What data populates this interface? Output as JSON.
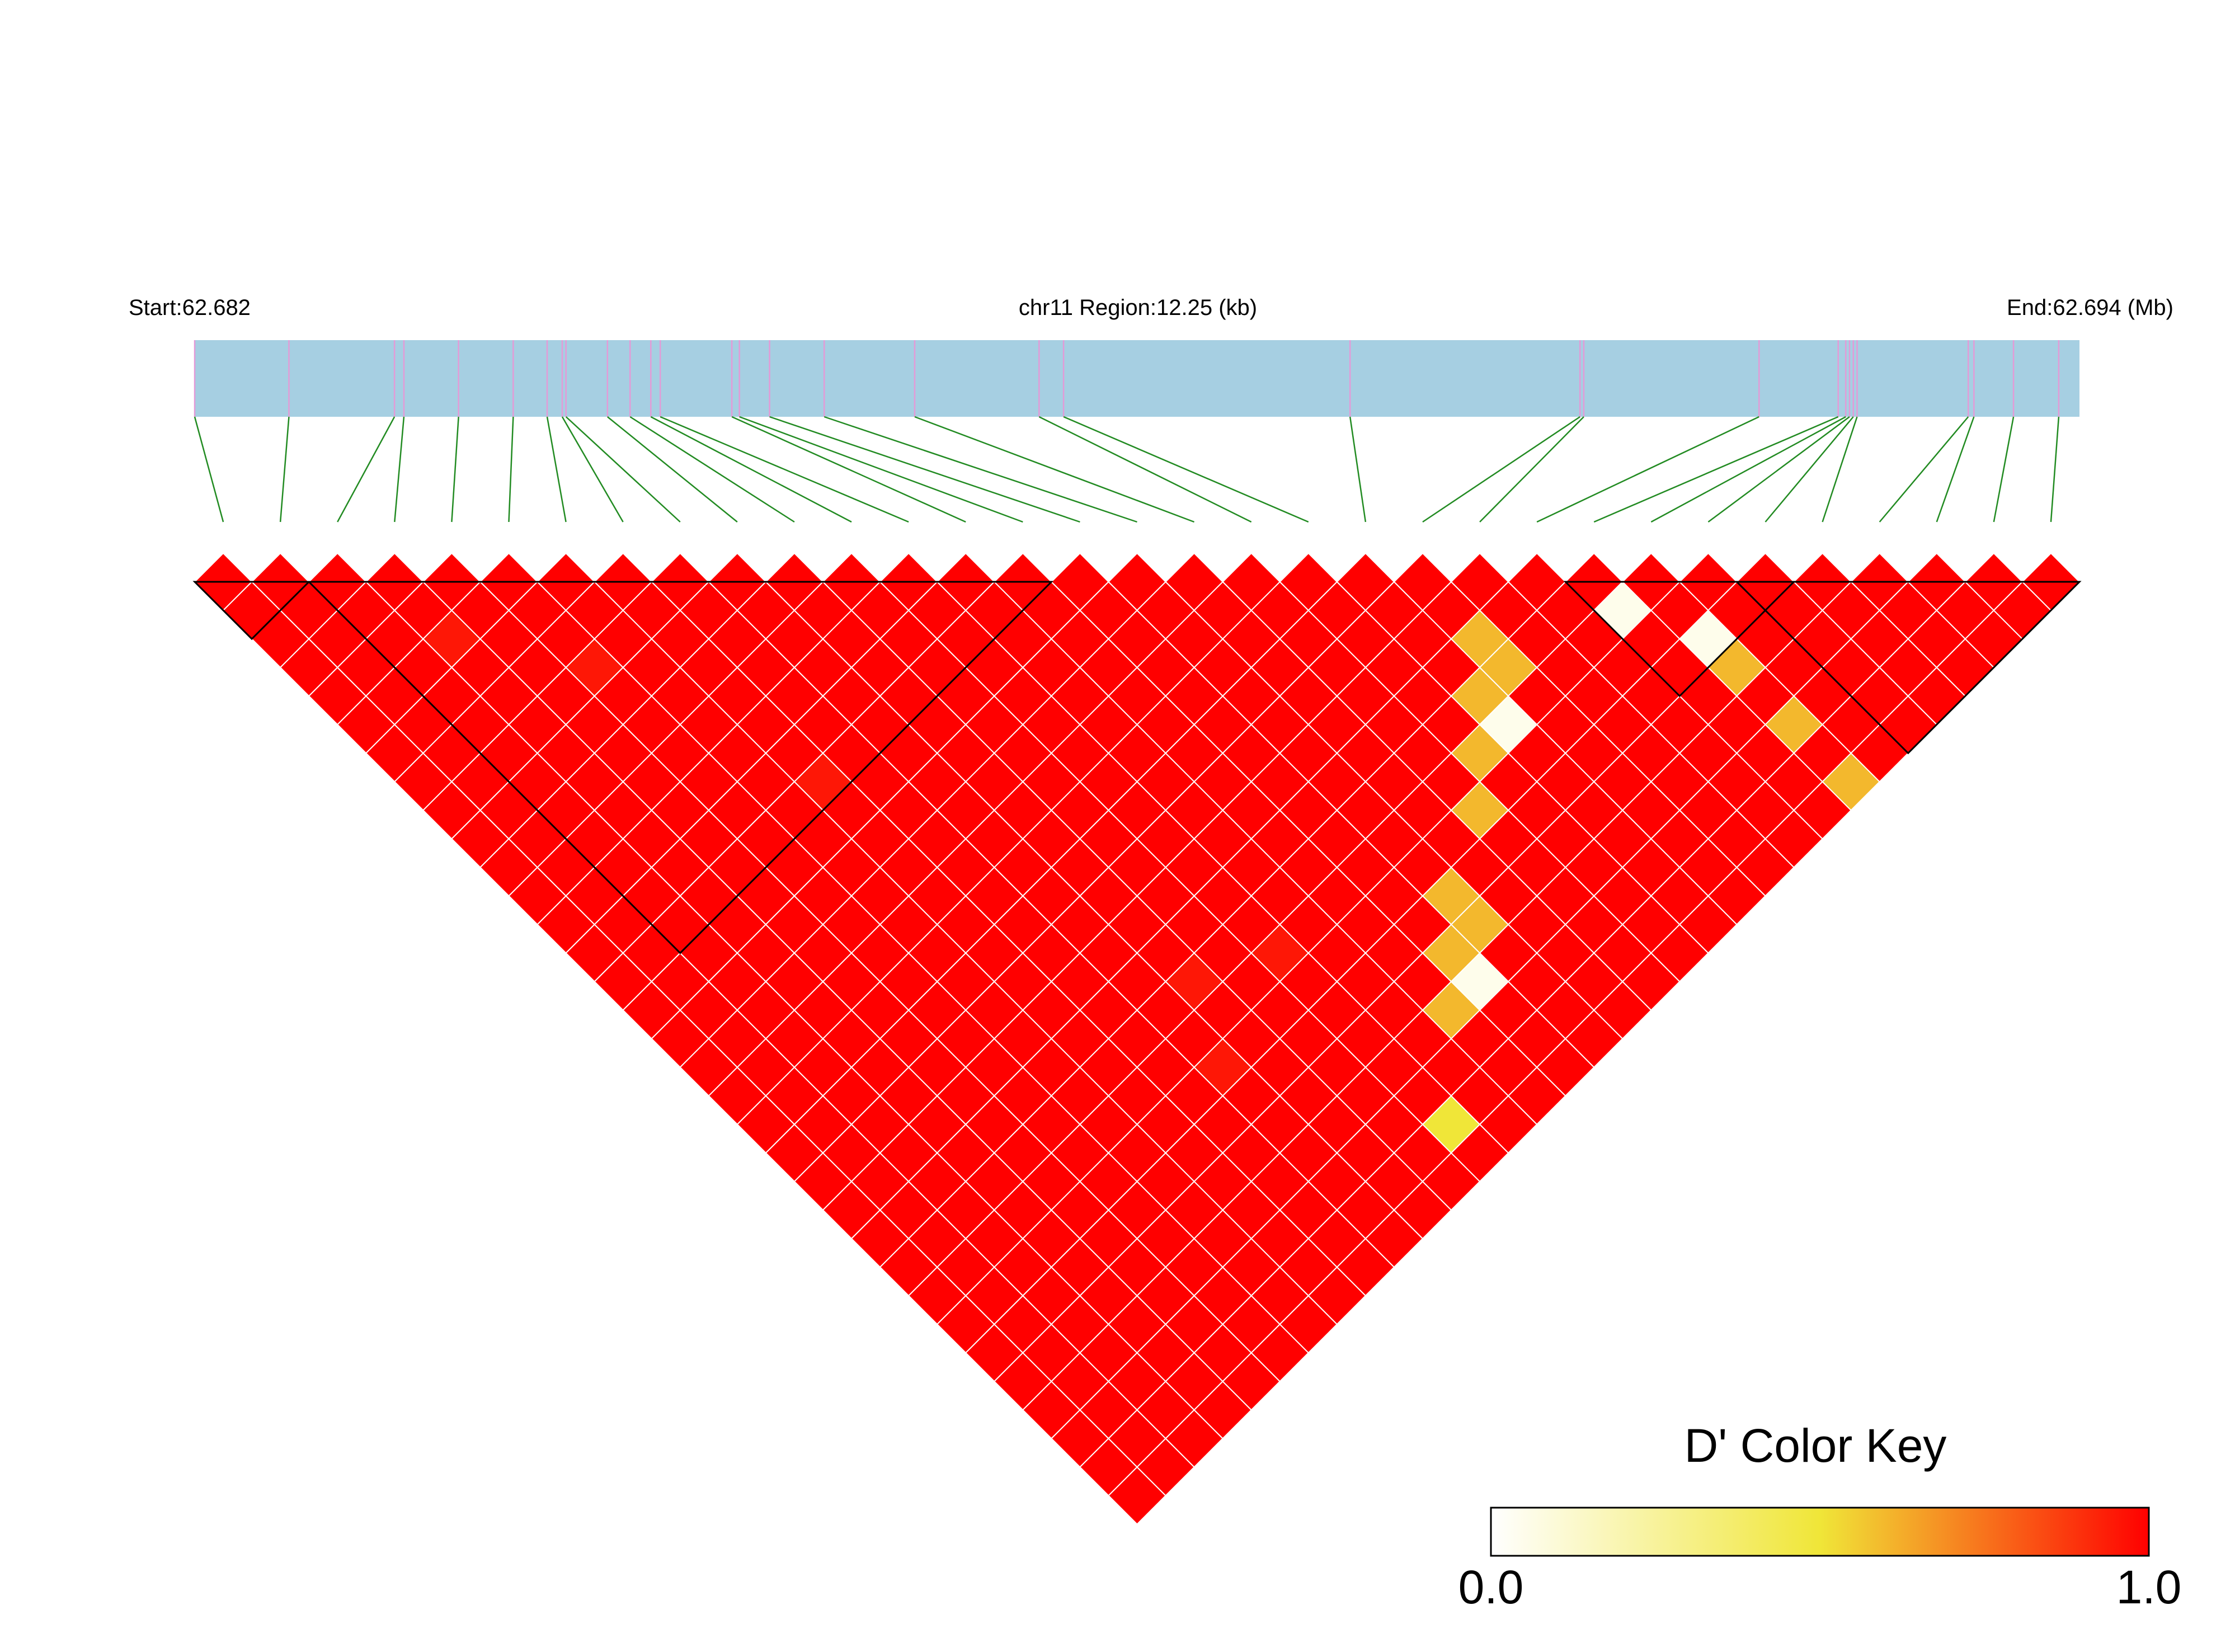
{
  "chart_data": {
    "type": "heatmap",
    "region": {
      "start_label": "Start:62.682",
      "center_label": "chr11 Region:12.25 (kb)",
      "end_label": "End:62.694 (Mb)",
      "start_mb": 62.682,
      "end_mb": 62.694,
      "length_kb": 12.25
    },
    "n_snps": 33,
    "snp_positions_frac": [
      0.0,
      0.05,
      0.106,
      0.111,
      0.14,
      0.169,
      0.187,
      0.195,
      0.197,
      0.219,
      0.231,
      0.242,
      0.247,
      0.285,
      0.289,
      0.305,
      0.334,
      0.382,
      0.448,
      0.461,
      0.613,
      0.735,
      0.737,
      0.83,
      0.872,
      0.876,
      0.878,
      0.88,
      0.882,
      0.941,
      0.944,
      0.965,
      0.989
    ],
    "default_value": 1.0,
    "cells": [
      {
        "i": 24,
        "j": 25,
        "value": 0.05
      },
      {
        "i": 25,
        "j": 27,
        "value": 0.05
      },
      {
        "i": 21,
        "j": 23,
        "value": 0.6
      },
      {
        "i": 21,
        "j": 24,
        "value": 0.6
      },
      {
        "i": 20,
        "j": 24,
        "value": 0.6
      },
      {
        "i": 20,
        "j": 25,
        "value": 0.05
      },
      {
        "i": 19,
        "j": 25,
        "value": 0.6
      },
      {
        "i": 18,
        "j": 26,
        "value": 0.6
      },
      {
        "i": 16,
        "j": 27,
        "value": 0.6
      },
      {
        "i": 16,
        "j": 28,
        "value": 0.6
      },
      {
        "i": 15,
        "j": 28,
        "value": 0.6
      },
      {
        "i": 15,
        "j": 29,
        "value": 0.05
      },
      {
        "i": 14,
        "j": 29,
        "value": 0.6
      },
      {
        "i": 12,
        "j": 31,
        "value": 0.5
      },
      {
        "i": 25,
        "j": 28,
        "value": 0.6
      },
      {
        "i": 25,
        "j": 30,
        "value": 0.6
      },
      {
        "i": 25,
        "j": 32,
        "value": 0.6
      },
      {
        "i": 3,
        "j": 5,
        "value": 0.95
      },
      {
        "i": 5,
        "j": 8,
        "value": 0.95
      },
      {
        "i": 7,
        "j": 14,
        "value": 0.95
      },
      {
        "i": 10,
        "j": 24,
        "value": 0.95
      },
      {
        "i": 9,
        "j": 26,
        "value": 0.95
      },
      {
        "i": 12,
        "j": 25,
        "value": 0.95
      }
    ],
    "blocks": [
      [
        0,
        1
      ],
      [
        2,
        14
      ],
      [
        24,
        27
      ],
      [
        27,
        32
      ]
    ],
    "color_key": {
      "title": "D' Color Key",
      "min_label": "0.0",
      "max_label": "1.0",
      "stops": [
        "#ffffff",
        "#f0e638",
        "#ff0000"
      ]
    },
    "colors": {
      "track_fill": "#a6cfe2",
      "snp_tick": "#e39bd7",
      "connector": "#228b22",
      "block_outline": "#000000",
      "cell_border": "#ffffff"
    }
  }
}
